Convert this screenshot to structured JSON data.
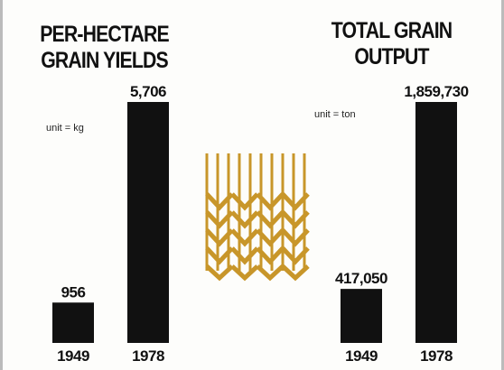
{
  "chart_data": [
    {
      "type": "bar",
      "title": "PER-HECTARE GRAIN YIELDS",
      "annotation": "unit = kg",
      "categories": [
        "1949",
        "1978"
      ],
      "values": [
        956,
        5706
      ],
      "value_labels": [
        "956",
        "5,706"
      ],
      "color": "#111111"
    },
    {
      "type": "bar",
      "title": "TOTAL GRAIN OUTPUT",
      "annotation": "unit = ton",
      "categories": [
        "1949",
        "1978"
      ],
      "values": [
        417050,
        1859730
      ],
      "value_labels": [
        "417,050",
        "1,859,730"
      ],
      "color": "#111111"
    }
  ]
}
